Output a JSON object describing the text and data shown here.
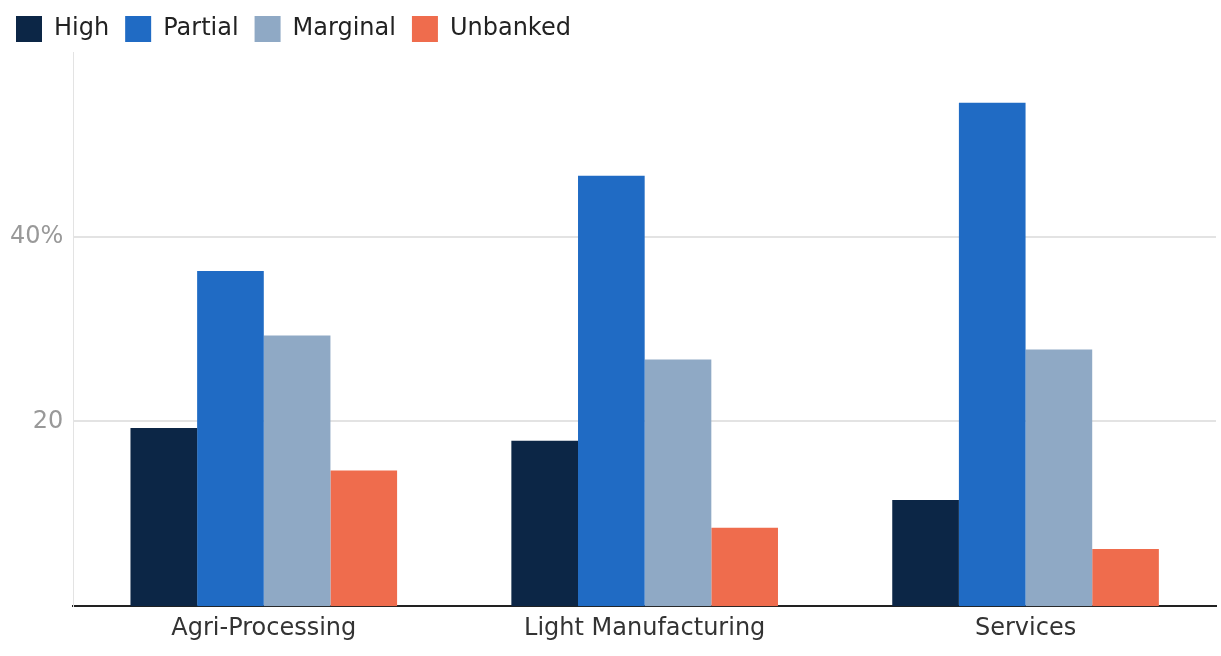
{
  "chart_data": {
    "type": "bar",
    "categories": [
      "Agri-Processing",
      "Light Manufacturing",
      "Services"
    ],
    "series": [
      {
        "name": "High",
        "color": "#0c2646",
        "values": [
          19.3,
          17.9,
          11.5
        ]
      },
      {
        "name": "Partial",
        "color": "#206bc4",
        "values": [
          36.3,
          46.6,
          54.5
        ]
      },
      {
        "name": "Marginal",
        "color": "#8fa9c5",
        "values": [
          29.3,
          26.7,
          27.8
        ]
      },
      {
        "name": "Unbanked",
        "color": "#ef6c4d",
        "values": [
          14.7,
          8.5,
          6.2
        ]
      }
    ],
    "ylim": [
      0,
      60
    ],
    "yticks": [
      20,
      {
        "value": 40,
        "label": "40%"
      }
    ],
    "grid": "y",
    "legend": "top left"
  }
}
